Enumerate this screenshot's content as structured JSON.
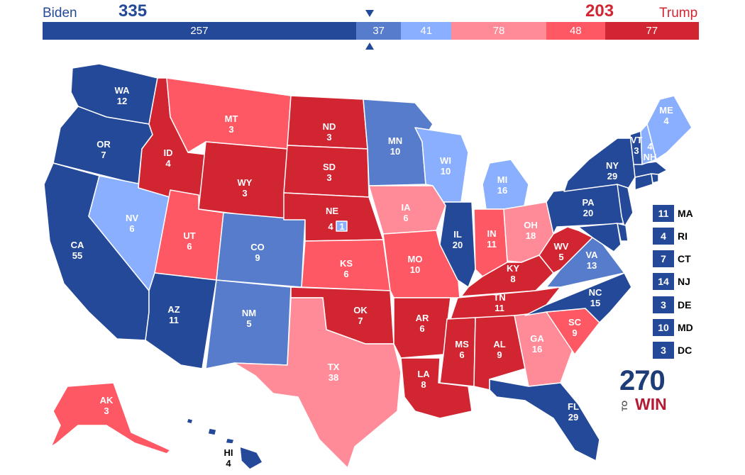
{
  "header": {
    "dem_name": "Biden",
    "dem_total": "335",
    "rep_name": "Trump",
    "rep_total": "203",
    "segments": [
      {
        "value": 257,
        "color": "#244999"
      },
      {
        "value": 37,
        "color": "#577ccc"
      },
      {
        "value": 41,
        "color": "#8aafff"
      },
      {
        "value": 78,
        "color": "#ff8b98"
      },
      {
        "value": 48,
        "color": "#ff5865"
      },
      {
        "value": 77,
        "color": "#d22532"
      }
    ]
  },
  "colors": {
    "dem_safe": "#244999",
    "dem_likely": "#577ccc",
    "dem_lean": "#8aafff",
    "rep_lean": "#ff8b98",
    "rep_likely": "#ff5865",
    "rep_safe": "#d22532"
  },
  "states": {
    "WA": {
      "label": "WA",
      "ev": "12",
      "rating": "dem_safe"
    },
    "OR": {
      "label": "OR",
      "ev": "7",
      "rating": "dem_safe"
    },
    "CA": {
      "label": "CA",
      "ev": "55",
      "rating": "dem_safe"
    },
    "NV": {
      "label": "NV",
      "ev": "6",
      "rating": "dem_lean"
    },
    "ID": {
      "label": "ID",
      "ev": "4",
      "rating": "rep_safe"
    },
    "MT": {
      "label": "MT",
      "ev": "3",
      "rating": "rep_likely"
    },
    "WY": {
      "label": "WY",
      "ev": "3",
      "rating": "rep_safe"
    },
    "UT": {
      "label": "UT",
      "ev": "6",
      "rating": "rep_likely"
    },
    "AZ": {
      "label": "AZ",
      "ev": "11",
      "rating": "dem_safe"
    },
    "CO": {
      "label": "CO",
      "ev": "9",
      "rating": "dem_likely"
    },
    "NM": {
      "label": "NM",
      "ev": "5",
      "rating": "dem_likely"
    },
    "ND": {
      "label": "ND",
      "ev": "3",
      "rating": "rep_safe"
    },
    "SD": {
      "label": "SD",
      "ev": "3",
      "rating": "rep_safe"
    },
    "NE": {
      "label": "NE",
      "ev": "4",
      "rating": "rep_safe",
      "district_ev": "1"
    },
    "KS": {
      "label": "KS",
      "ev": "6",
      "rating": "rep_likely"
    },
    "OK": {
      "label": "OK",
      "ev": "7",
      "rating": "rep_safe"
    },
    "TX": {
      "label": "TX",
      "ev": "38",
      "rating": "rep_lean"
    },
    "MN": {
      "label": "MN",
      "ev": "10",
      "rating": "dem_likely"
    },
    "IA": {
      "label": "IA",
      "ev": "6",
      "rating": "rep_lean"
    },
    "MO": {
      "label": "MO",
      "ev": "10",
      "rating": "rep_likely"
    },
    "AR": {
      "label": "AR",
      "ev": "6",
      "rating": "rep_safe"
    },
    "LA": {
      "label": "LA",
      "ev": "8",
      "rating": "rep_safe"
    },
    "WI": {
      "label": "WI",
      "ev": "10",
      "rating": "dem_lean"
    },
    "IL": {
      "label": "IL",
      "ev": "20",
      "rating": "dem_safe"
    },
    "MI": {
      "label": "MI",
      "ev": "16",
      "rating": "dem_lean"
    },
    "IN": {
      "label": "IN",
      "ev": "11",
      "rating": "rep_likely"
    },
    "OH": {
      "label": "OH",
      "ev": "18",
      "rating": "rep_lean"
    },
    "KY": {
      "label": "KY",
      "ev": "8",
      "rating": "rep_safe"
    },
    "TN": {
      "label": "TN",
      "ev": "11",
      "rating": "rep_safe"
    },
    "MS": {
      "label": "MS",
      "ev": "6",
      "rating": "rep_safe"
    },
    "AL": {
      "label": "AL",
      "ev": "9",
      "rating": "rep_safe"
    },
    "GA": {
      "label": "GA",
      "ev": "16",
      "rating": "rep_lean"
    },
    "FL": {
      "label": "FL",
      "ev": "29",
      "rating": "dem_safe"
    },
    "SC": {
      "label": "SC",
      "ev": "9",
      "rating": "rep_likely"
    },
    "NC": {
      "label": "NC",
      "ev": "15",
      "rating": "dem_safe"
    },
    "VA": {
      "label": "VA",
      "ev": "13",
      "rating": "dem_likely"
    },
    "WV": {
      "label": "WV",
      "ev": "5",
      "rating": "rep_safe"
    },
    "PA": {
      "label": "PA",
      "ev": "20",
      "rating": "dem_safe"
    },
    "NY": {
      "label": "NY",
      "ev": "29",
      "rating": "dem_safe"
    },
    "VT": {
      "label": "VT",
      "ev": "3",
      "rating": "dem_safe"
    },
    "NH": {
      "label": "NH",
      "ev": "4",
      "rating": "dem_lean"
    },
    "ME": {
      "label": "ME",
      "ev": "4",
      "rating": "dem_lean"
    },
    "AK": {
      "label": "AK",
      "ev": "3",
      "rating": "rep_likely"
    },
    "HI": {
      "label": "HI",
      "ev": "4",
      "rating": "dem_safe"
    },
    "NJ": {
      "rating": "dem_safe"
    },
    "DE": {
      "rating": "dem_safe"
    },
    "MD": {
      "rating": "dem_safe"
    },
    "CT": {
      "rating": "dem_safe"
    },
    "RI": {
      "rating": "dem_safe"
    },
    "MA": {
      "rating": "dem_safe"
    }
  },
  "small_states": [
    {
      "ev": "11",
      "abbr": "MA",
      "rating": "dem_safe"
    },
    {
      "ev": "4",
      "abbr": "RI",
      "rating": "dem_safe"
    },
    {
      "ev": "7",
      "abbr": "CT",
      "rating": "dem_safe"
    },
    {
      "ev": "14",
      "abbr": "NJ",
      "rating": "dem_safe"
    },
    {
      "ev": "3",
      "abbr": "DE",
      "rating": "dem_safe"
    },
    {
      "ev": "10",
      "abbr": "MD",
      "rating": "dem_safe"
    },
    {
      "ev": "3",
      "abbr": "DC",
      "rating": "dem_safe"
    }
  ],
  "logo": {
    "number": "270",
    "to": "TO",
    "win": "WIN"
  }
}
